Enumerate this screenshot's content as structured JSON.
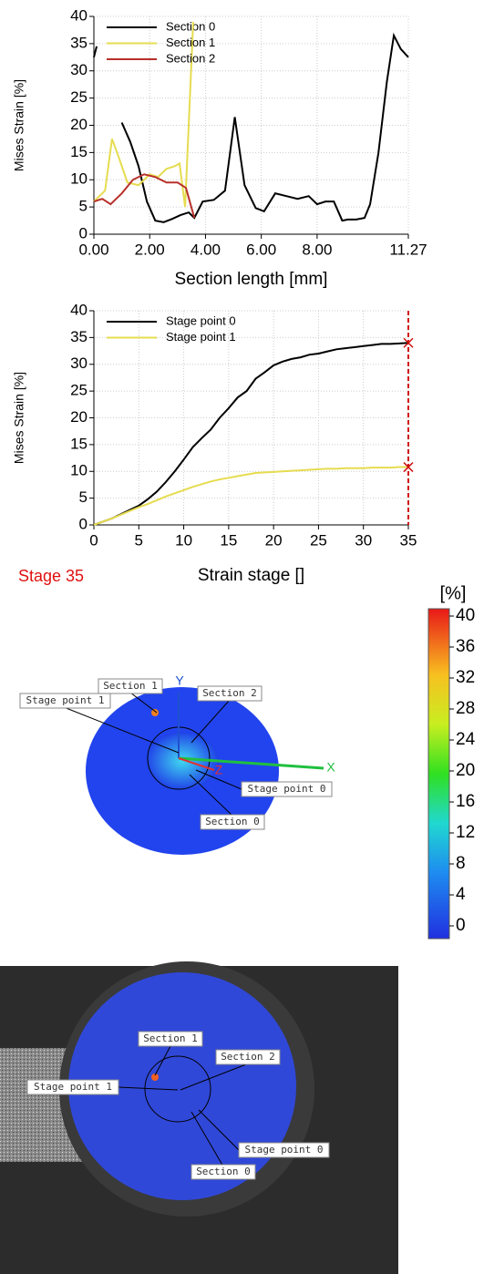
{
  "chart_data": [
    {
      "type": "line",
      "x_label": "Section length [mm]",
      "y_label": "Mises Strain [%]",
      "xlim": [
        0,
        11.27
      ],
      "ylim": [
        0,
        40
      ],
      "xticks": [
        {
          "value": 0,
          "label": "0.00"
        },
        {
          "value": 2,
          "label": "2.00"
        },
        {
          "value": 4,
          "label": "4.00"
        },
        {
          "value": 6,
          "label": "6.00"
        },
        {
          "value": 8,
          "label": "8.00"
        },
        11.27
      ],
      "yticks": [
        0,
        5,
        10,
        15,
        20,
        25,
        30,
        35,
        40
      ],
      "grid": true,
      "legend": "upper-left",
      "series": [
        {
          "name": "Section 0",
          "color": "#000000",
          "x": [
            0,
            0.1,
            0.5,
            1.0,
            1.3,
            1.6,
            1.9,
            2.2,
            2.5,
            2.8,
            3.1,
            3.4,
            3.6,
            3.9,
            4.3,
            4.7,
            5.05,
            5.4,
            5.8,
            6.1,
            6.5,
            6.9,
            7.3,
            7.7,
            8.0,
            8.3,
            8.6,
            8.9,
            9.1,
            9.4,
            9.7,
            9.9,
            10.2,
            10.5,
            10.75,
            11.0,
            11.27
          ],
          "values": [
            32.5,
            34.5,
            null,
            20.5,
            17,
            12.5,
            6,
            2.5,
            2.2,
            2.8,
            3.5,
            4,
            3,
            6,
            6.3,
            8,
            21.5,
            9,
            4.8,
            4.2,
            7.5,
            7,
            6.5,
            7,
            5.5,
            6,
            6,
            2.5,
            2.7,
            2.7,
            3,
            5.5,
            15,
            28,
            36.5,
            34,
            32.5
          ]
        },
        {
          "name": "Section 1",
          "color": "#e6dc50",
          "x": [
            0,
            0.4,
            0.65,
            0.9,
            1.2,
            1.6,
            2.0,
            2.3,
            2.6,
            2.9,
            3.07,
            3.27,
            3.56
          ],
          "values": [
            6,
            8,
            17.5,
            14,
            9.5,
            9,
            11,
            10.5,
            12,
            12.5,
            13,
            5,
            39
          ]
        },
        {
          "name": "Section 2",
          "color": "#b8302a",
          "x": [
            0,
            0.3,
            0.6,
            1.0,
            1.4,
            1.8,
            2.2,
            2.6,
            3.0,
            3.3,
            3.6
          ],
          "values": [
            6,
            6.5,
            5.5,
            7.5,
            10,
            11,
            10.5,
            9.5,
            9.5,
            8.5,
            3
          ]
        }
      ]
    },
    {
      "type": "line",
      "x_label": "Strain stage []",
      "y_label": "Mises Strain [%]",
      "xlim": [
        0,
        35
      ],
      "ylim": [
        0,
        40
      ],
      "xticks": [
        0,
        5,
        10,
        15,
        20,
        25,
        30,
        35
      ],
      "yticks": [
        0,
        5,
        10,
        15,
        20,
        25,
        30,
        35,
        40
      ],
      "grid": true,
      "legend": "upper-left",
      "stage_marker": 35,
      "stage_label": "Stage 35",
      "series": [
        {
          "name": "Stage point 0",
          "color": "#000000",
          "x": [
            0,
            1,
            2,
            3,
            4,
            5,
            6,
            7,
            8,
            9,
            10,
            11,
            12,
            13,
            14,
            15,
            16,
            17,
            18,
            19,
            20,
            21,
            22,
            23,
            24,
            25,
            26,
            27,
            28,
            29,
            30,
            31,
            32,
            33,
            34,
            35
          ],
          "values": [
            0,
            0.6,
            1.2,
            2,
            2.8,
            3.6,
            4.8,
            6.2,
            8,
            10,
            12.2,
            14.5,
            16.2,
            17.8,
            20,
            21.8,
            23.8,
            25,
            27.3,
            28.5,
            29.8,
            30.5,
            31,
            31.3,
            31.8,
            32,
            32.4,
            32.8,
            33,
            33.2,
            33.4,
            33.6,
            33.8,
            33.8,
            33.9,
            34
          ]
        },
        {
          "name": "Stage point 1",
          "color": "#e6dc50",
          "x": [
            0,
            1,
            2,
            3,
            4,
            5,
            6,
            7,
            8,
            9,
            10,
            11,
            12,
            13,
            14,
            15,
            16,
            17,
            18,
            19,
            20,
            21,
            22,
            23,
            24,
            25,
            26,
            27,
            28,
            29,
            30,
            31,
            32,
            33,
            34,
            35
          ],
          "values": [
            0,
            0.6,
            1.2,
            1.9,
            2.6,
            3.3,
            3.9,
            4.6,
            5.3,
            5.9,
            6.5,
            7.1,
            7.6,
            8.1,
            8.5,
            8.8,
            9.1,
            9.4,
            9.7,
            9.8,
            9.9,
            10,
            10.1,
            10.2,
            10.3,
            10.4,
            10.5,
            10.5,
            10.6,
            10.6,
            10.6,
            10.7,
            10.7,
            10.7,
            10.8,
            10.8
          ]
        }
      ]
    }
  ],
  "colorbar": {
    "unit": "[%]",
    "range": [
      0,
      40
    ],
    "ticks": [
      40,
      36,
      32,
      28,
      24,
      20,
      16,
      12,
      8,
      4,
      0
    ]
  },
  "strain_map": {
    "axes": [
      "Y",
      "X",
      "Z"
    ],
    "labels": [
      "Section 1",
      "Section 2",
      "Stage point 1",
      "Stage point 0",
      "Section 0"
    ]
  },
  "photo": {
    "labels": [
      "Section 1",
      "Section 2",
      "Stage point 1",
      "Stage point 0",
      "Section 0"
    ]
  }
}
